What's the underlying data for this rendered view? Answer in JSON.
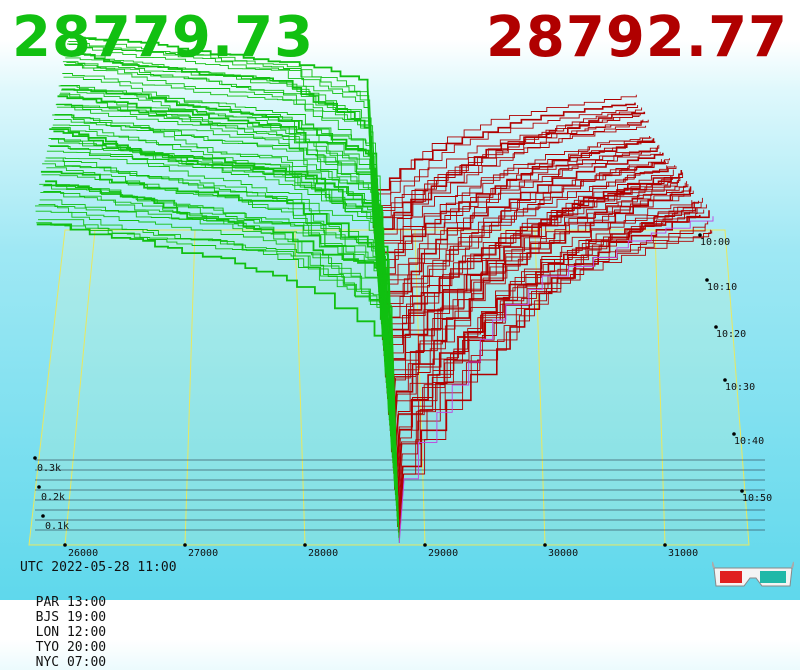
{
  "header": {
    "bid_price": "28779.73",
    "ask_price": "28792.77",
    "bid_color": "#11c011",
    "ask_color": "#b00000"
  },
  "chart_data": {
    "type": "line",
    "description_free": true,
    "x_ticks": [
      "26000",
      "27000",
      "28000",
      "29000",
      "30000",
      "31000"
    ],
    "x_tick_values": [
      26000,
      27000,
      28000,
      29000,
      30000,
      31000
    ],
    "depth_ticks": [
      "0.1k",
      "0.2k",
      "0.3k"
    ],
    "depth_tick_values": [
      100,
      200,
      300
    ],
    "time_ticks": [
      "10:00",
      "10:10",
      "10:20",
      "10:30",
      "10:40",
      "10:50"
    ],
    "mid_price": 28786,
    "bid_series_color": "#11c011",
    "ask_series_color": "#b00000",
    "latest_ask_color": "#c040e0",
    "grid": true,
    "grid_color": "#e8e860"
  },
  "footer": {
    "utc": "UTC 2022-05-28 11:00",
    "zones": [
      "PAR 13:00",
      "BJS 19:00",
      "LON 12:00",
      "TYO 20:00",
      "NYC 07:00"
    ]
  },
  "icons": {
    "glasses": "3d-glasses-icon"
  }
}
